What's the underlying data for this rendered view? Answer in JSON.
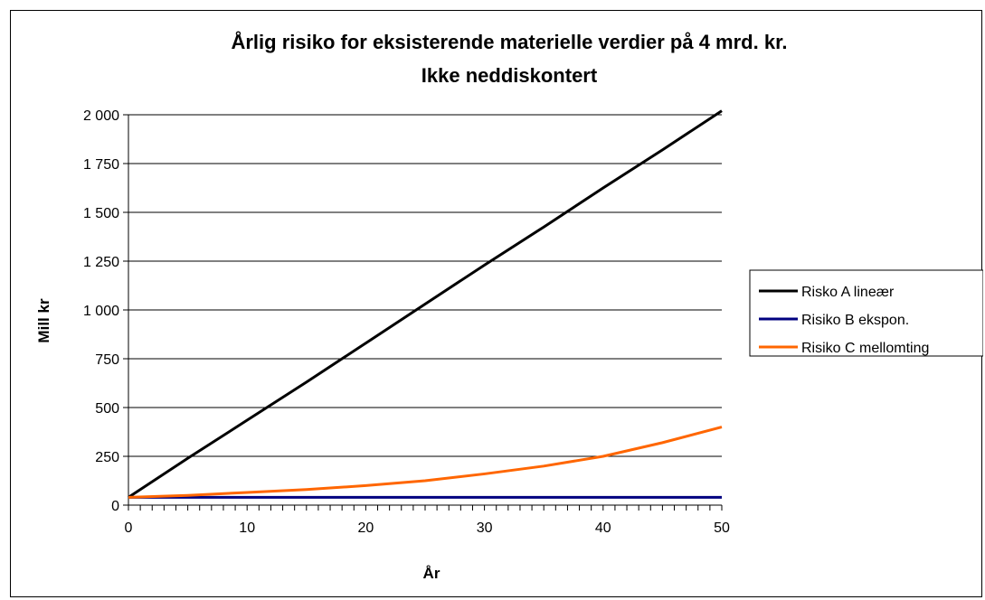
{
  "chart_data": {
    "type": "line",
    "title": "Årlig risiko for eksisterende materielle verdier på 4 mrd. kr.",
    "subtitle": "Ikke neddiskontert",
    "xlabel": "År",
    "ylabel": "Mill kr",
    "xlim": [
      0,
      50
    ],
    "ylim": [
      0,
      2000
    ],
    "xticks": [
      "0",
      "10",
      "20",
      "30",
      "40",
      "50"
    ],
    "yticks": [
      "0",
      "250",
      "500",
      "750",
      "1 000",
      "1 250",
      "1 500",
      "1 750",
      "2 000"
    ],
    "grid": "horizontal",
    "legend_position": "right",
    "x": [
      0,
      5,
      10,
      15,
      20,
      25,
      30,
      35,
      40,
      45,
      50
    ],
    "series": [
      {
        "name": "Risko A lineær",
        "color": "#000000",
        "values": [
          40,
          240,
          435,
          630,
          830,
          1030,
          1230,
          1425,
          1625,
          1820,
          2020
        ]
      },
      {
        "name": "Risiko B ekspon.",
        "color": "#000080",
        "values": [
          40,
          40,
          40,
          40,
          40,
          40,
          40,
          40,
          40,
          40,
          40
        ]
      },
      {
        "name": "Risiko C mellomting",
        "color": "#ff6600",
        "values": [
          40,
          50,
          65,
          80,
          100,
          125,
          160,
          200,
          250,
          320,
          400
        ]
      }
    ]
  }
}
